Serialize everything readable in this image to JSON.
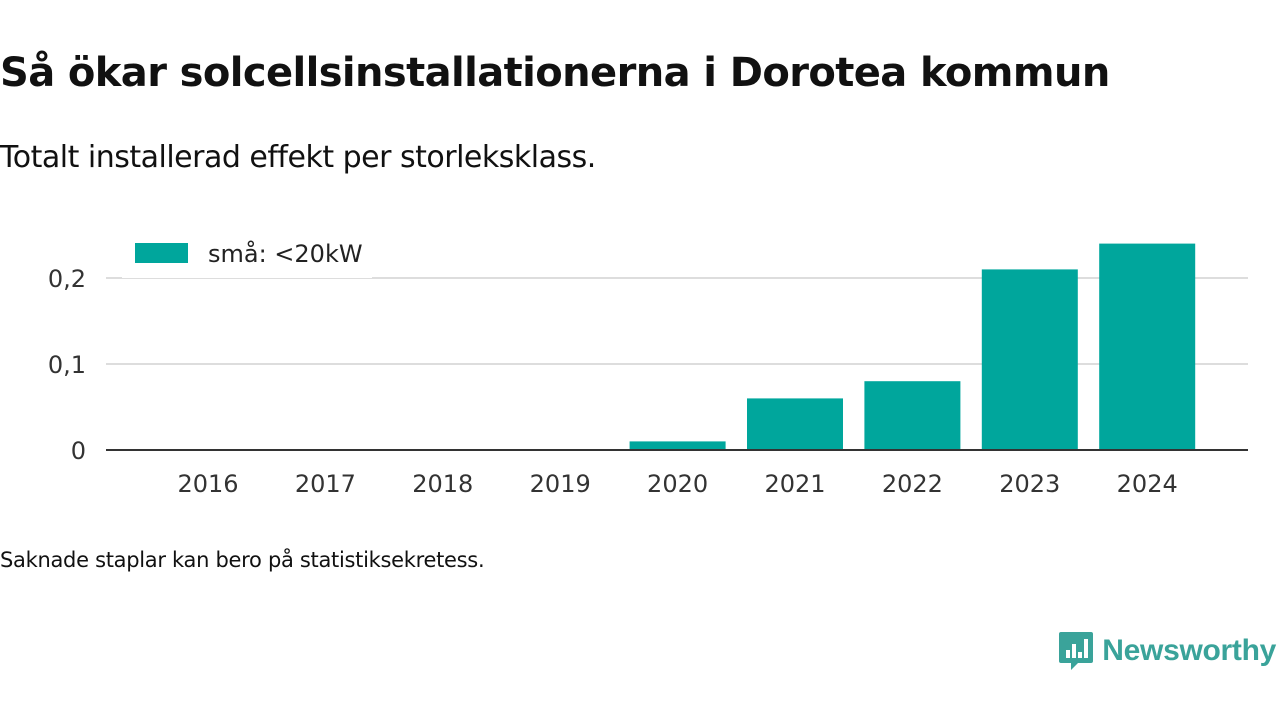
{
  "title": "Så ökar solcellsinstallationerna i Dorotea kommun",
  "subtitle": "Totalt installerad effekt per storleksklass.",
  "footnote": "Saknade staplar kan bero på statistiksekretess.",
  "brand": {
    "name": "Newsworthy",
    "color": "#3aa39a",
    "icon": "newsworthy-chart-bubble-icon"
  },
  "chart_data": {
    "type": "bar",
    "categories": [
      "2016",
      "2017",
      "2018",
      "2019",
      "2020",
      "2021",
      "2022",
      "2023",
      "2024"
    ],
    "series": [
      {
        "name": "små: <20kW",
        "color": "#00a69c",
        "values": [
          0,
          0,
          0,
          0,
          0.01,
          0.06,
          0.08,
          0.21,
          0.24
        ]
      }
    ],
    "ylim": [
      0,
      0.24
    ],
    "yticks": [
      0,
      0.1,
      0.2
    ],
    "ytick_labels": [
      "0",
      "0,1",
      "0,2"
    ],
    "xlabel": "",
    "ylabel": "",
    "grid": true,
    "legend": "top-left"
  }
}
